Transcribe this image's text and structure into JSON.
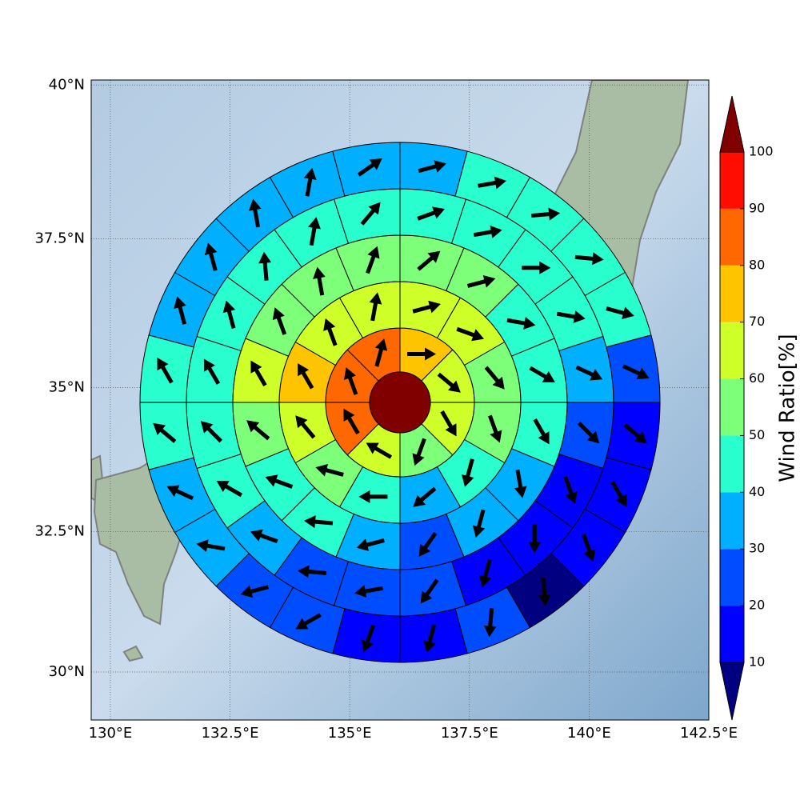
{
  "chart_data": {
    "type": "polar_sectors",
    "xlim": [
      129.6,
      142.5
    ],
    "ylim": [
      29.13,
      40.08
    ],
    "xticks": [
      {
        "value": 130,
        "label": "130°E"
      },
      {
        "value": 132.5,
        "label": "132.5°E"
      },
      {
        "value": 135,
        "label": "135°E"
      },
      {
        "value": 137.5,
        "label": "137.5°E"
      },
      {
        "value": 140,
        "label": "140°E"
      },
      {
        "value": 142.5,
        "label": "142.5°E"
      }
    ],
    "yticks": [
      {
        "value": 30,
        "label": "30°N"
      },
      {
        "value": 32.5,
        "label": "32.5°N"
      },
      {
        "value": 35,
        "label": "35°N"
      },
      {
        "value": 37.5,
        "label": "37.5°N"
      },
      {
        "value": 40,
        "label": "40°N"
      }
    ],
    "grid": true,
    "center": {
      "value": 105
    },
    "rings": [
      {
        "values": [
          75,
          65,
          62,
          58,
          63,
          85,
          85,
          85
        ],
        "directions": [
          90,
          130,
          150,
          200,
          300,
          330,
          340,
          15
        ]
      },
      {
        "values": [
          65,
          62,
          58,
          52,
          45,
          35,
          42,
          58,
          66,
          72,
          62,
          62
        ],
        "directions": [
          75,
          110,
          140,
          160,
          195,
          230,
          270,
          285,
          320,
          330,
          340,
          10
        ]
      },
      {
        "values": [
          55,
          52,
          48,
          45,
          42,
          38,
          32,
          28,
          35,
          42,
          48,
          55,
          62,
          55,
          52,
          55
        ],
        "directions": [
          50,
          75,
          100,
          120,
          150,
          170,
          195,
          215,
          255,
          275,
          290,
          310,
          330,
          340,
          350,
          20
        ]
      },
      {
        "values": [
          42,
          42,
          42,
          40,
          35,
          25,
          18,
          15,
          18,
          25,
          28,
          28,
          35,
          42,
          45,
          45,
          42,
          45,
          45,
          45
        ],
        "directions": [
          70,
          80,
          90,
          100,
          115,
          135,
          160,
          180,
          195,
          215,
          260,
          275,
          290,
          300,
          315,
          330,
          345,
          355,
          10,
          40
        ]
      },
      {
        "values": [
          35,
          42,
          45,
          45,
          42,
          22,
          15,
          15,
          15,
          8,
          22,
          15,
          15,
          22,
          22,
          35,
          35,
          42,
          42,
          35,
          35,
          35,
          35,
          35
        ],
        "directions": [
          75,
          80,
          85,
          95,
          105,
          115,
          130,
          150,
          160,
          175,
          185,
          195,
          200,
          240,
          255,
          280,
          295,
          310,
          330,
          345,
          345,
          350,
          10,
          55
        ]
      }
    ],
    "colorbar": {
      "label": "Wind Ratio[%]",
      "levels": [
        10,
        20,
        30,
        40,
        50,
        60,
        70,
        80,
        90,
        100
      ],
      "colors": [
        "#000080",
        "#0000ff",
        "#004cff",
        "#00b0ff",
        "#29ffce",
        "#7dff7a",
        "#ceff29",
        "#ffc400",
        "#ff6800",
        "#ff0d00",
        "#800000"
      ]
    }
  }
}
